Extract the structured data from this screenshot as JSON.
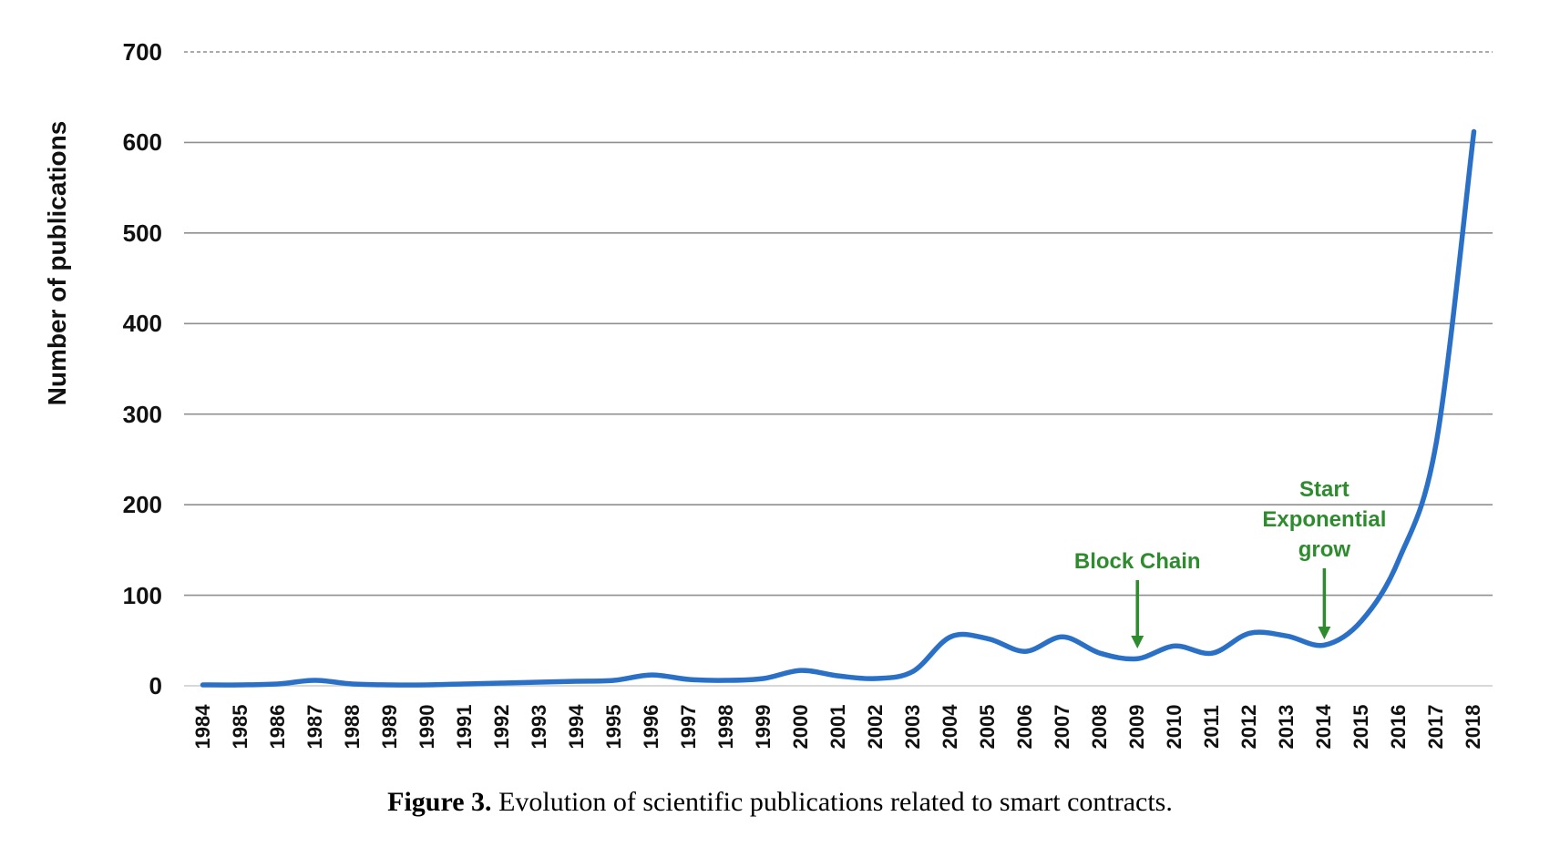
{
  "figure": {
    "caption_label": "Figure 3.",
    "caption_text": " Evolution of scientific publications related to smart contracts."
  },
  "chart_data": {
    "type": "line",
    "title": "",
    "xlabel": "",
    "ylabel": "Number of publications",
    "ylim": [
      0,
      700
    ],
    "y_ticks": [
      0,
      100,
      200,
      300,
      400,
      500,
      600,
      700
    ],
    "grid": "horizontal",
    "legend": "none",
    "x": [
      1984,
      1985,
      1986,
      1987,
      1988,
      1989,
      1990,
      1991,
      1992,
      1993,
      1994,
      1995,
      1996,
      1997,
      1998,
      1999,
      2000,
      2001,
      2002,
      2003,
      2004,
      2005,
      2006,
      2007,
      2008,
      2009,
      2010,
      2011,
      2012,
      2013,
      2014,
      2015,
      2016,
      2017,
      2018
    ],
    "series": [
      {
        "name": "Number of publications",
        "color": "#2a70c7",
        "values": [
          1,
          1,
          2,
          6,
          2,
          1,
          1,
          2,
          3,
          4,
          5,
          6,
          12,
          7,
          6,
          8,
          17,
          11,
          8,
          16,
          54,
          52,
          38,
          54,
          36,
          30,
          44,
          36,
          58,
          55,
          45,
          72,
          140,
          270,
          612
        ]
      }
    ],
    "annotations": [
      {
        "lines": [
          "Block Chain"
        ],
        "year": 2009,
        "color": "#2e8b2e"
      },
      {
        "lines": [
          "Start",
          "Exponential",
          "grow"
        ],
        "year": 2014,
        "color": "#2e8b2e"
      }
    ]
  },
  "colors": {
    "line": "#2a70c7",
    "annotation_green": "#2e8b2e",
    "gridline": "#8f8f8f",
    "baseline": "#cccccc",
    "text": "#111111"
  }
}
